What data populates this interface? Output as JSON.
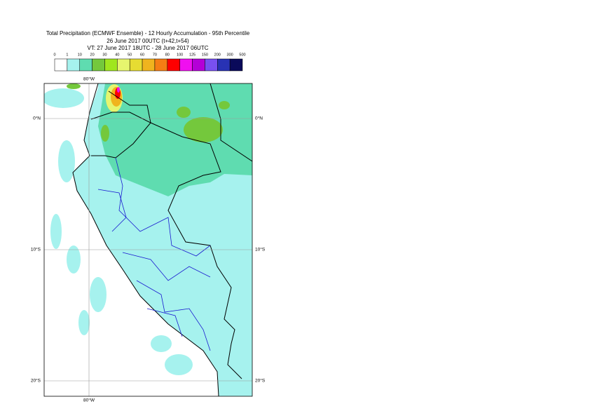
{
  "header": {
    "title_lines": [
      "Total Precipitation (ECMWF Ensemble) - 12 Hourly Accumulation - 95th Percentile",
      "26 June 2017 00UTC (t+42,t+54)",
      "VT: 27 June 2017 18UTC - 28 June 2017 06UTC"
    ]
  },
  "legend": {
    "labels": [
      0,
      1,
      10,
      20,
      30,
      40,
      50,
      60,
      70,
      80,
      100,
      125,
      150,
      200,
      300,
      500
    ],
    "colors": [
      "#ffffff",
      "#a6f2ee",
      "#5fdcb0",
      "#74c83c",
      "#a0e61e",
      "#e6f56e",
      "#e6dc32",
      "#f0b41e",
      "#f57d14",
      "#ff0000",
      "#f00ff0",
      "#b400d7",
      "#7850f0",
      "#2832b4",
      "#0a0a5a"
    ]
  },
  "map": {
    "lon_label_top": "80°W",
    "lon_label_bottom": "80°W",
    "lat_labels": [
      "0°N",
      "10°S",
      "20°S"
    ]
  }
}
